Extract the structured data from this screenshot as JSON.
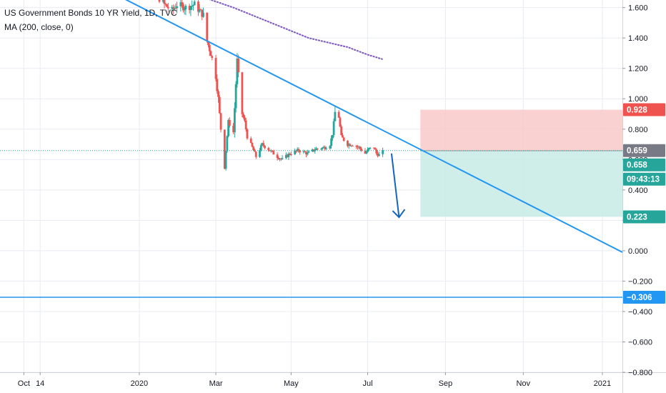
{
  "legend": {
    "symbol_line": "US Government Bonds 10 YR Yield, 1D, TVC",
    "ma_line": "MA (200, close, 0)"
  },
  "colors": {
    "up": "#26a69a",
    "down": "#ef5350",
    "ma": "#7e57c2",
    "trendline": "#2196f3",
    "arrow": "#1565c0",
    "stop_zone": "#f9c9c9",
    "target_zone": "#c7ebe5",
    "grid": "#e9ecf2",
    "axis_text": "#131722"
  },
  "chart_data": {
    "type": "candlestick",
    "title": "US Government Bonds 10 YR Yield, 1D, TVC",
    "indicator": "MA (200, close, 0)",
    "y_axis": {
      "range": [
        -0.8,
        1.65
      ],
      "ticks": [
        "1.600",
        "1.400",
        "1.200",
        "1.000",
        "0.800",
        "0.600",
        "0.400",
        "0.200",
        "0.000",
        "−0.200",
        "−0.400",
        "−0.600",
        "−0.800"
      ],
      "tick_values": [
        1.6,
        1.4,
        1.2,
        1.0,
        0.8,
        0.6,
        0.4,
        0.2,
        0.0,
        -0.2,
        -0.4,
        -0.6,
        -0.8
      ]
    },
    "x_axis": {
      "range": [
        "2019-09-12",
        "2021-01-20"
      ],
      "ticks": [
        {
          "label": "Oct",
          "date": "2019-10-01"
        },
        {
          "label": "14",
          "date": "2019-10-14"
        },
        {
          "label": "2020",
          "date": "2020-01-01"
        },
        {
          "label": "Mar",
          "date": "2020-03-02"
        },
        {
          "label": "May",
          "date": "2020-05-01"
        },
        {
          "label": "Jul",
          "date": "2020-07-01"
        },
        {
          "label": "Sep",
          "date": "2020-09-01"
        },
        {
          "label": "Nov",
          "date": "2020-11-02"
        },
        {
          "label": "2021",
          "date": "2021-01-04"
        }
      ]
    },
    "price_path": [
      [
        "2019-12-30",
        1.74
      ],
      [
        "2020-01-06",
        1.82
      ],
      [
        "2020-01-13",
        1.7
      ],
      [
        "2020-01-21",
        1.62
      ],
      [
        "2020-01-27",
        1.58
      ],
      [
        "2020-01-31",
        1.62
      ],
      [
        "2020-02-07",
        1.6
      ],
      [
        "2020-02-14",
        1.62
      ],
      [
        "2020-02-21",
        1.55
      ],
      [
        "2020-02-24",
        1.38
      ],
      [
        "2020-02-27",
        1.3
      ],
      [
        "2020-03-02",
        1.15
      ],
      [
        "2020-03-04",
        1.0
      ],
      [
        "2020-03-06",
        0.8
      ],
      [
        "2020-03-09",
        0.55
      ],
      [
        "2020-03-10",
        0.66
      ],
      [
        "2020-03-12",
        0.85
      ],
      [
        "2020-03-16",
        0.78
      ],
      [
        "2020-03-18",
        1.1
      ],
      [
        "2020-03-19",
        1.25
      ],
      [
        "2020-03-20",
        1.15
      ],
      [
        "2020-03-23",
        0.9
      ],
      [
        "2020-03-25",
        0.85
      ],
      [
        "2020-03-27",
        0.75
      ],
      [
        "2020-03-31",
        0.68
      ],
      [
        "2020-04-03",
        0.62
      ],
      [
        "2020-04-08",
        0.7
      ],
      [
        "2020-04-14",
        0.66
      ],
      [
        "2020-04-20",
        0.62
      ],
      [
        "2020-04-24",
        0.6
      ],
      [
        "2020-04-30",
        0.64
      ],
      [
        "2020-05-07",
        0.66
      ],
      [
        "2020-05-14",
        0.64
      ],
      [
        "2020-05-21",
        0.67
      ],
      [
        "2020-05-28",
        0.68
      ],
      [
        "2020-06-01",
        0.7
      ],
      [
        "2020-06-03",
        0.77
      ],
      [
        "2020-06-05",
        0.91
      ],
      [
        "2020-06-08",
        0.88
      ],
      [
        "2020-06-10",
        0.75
      ],
      [
        "2020-06-15",
        0.7
      ],
      [
        "2020-06-19",
        0.7
      ],
      [
        "2020-06-24",
        0.68
      ],
      [
        "2020-06-29",
        0.64
      ],
      [
        "2020-07-02",
        0.67
      ],
      [
        "2020-07-06",
        0.68
      ],
      [
        "2020-07-08",
        0.64
      ],
      [
        "2020-07-10",
        0.63
      ],
      [
        "2020-07-13",
        0.65
      ]
    ],
    "moving_average_200": [
      [
        "2020-02-10",
        1.7
      ],
      [
        "2020-03-16",
        1.6
      ],
      [
        "2020-04-15",
        1.5
      ],
      [
        "2020-05-15",
        1.4
      ],
      [
        "2020-06-15",
        1.34
      ],
      [
        "2020-07-01",
        1.29
      ],
      [
        "2020-07-13",
        1.26
      ]
    ],
    "trendline": [
      [
        "2019-12-10",
        1.7
      ],
      [
        "2021-01-20",
        -0.01
      ]
    ],
    "horizontal_line": {
      "value": -0.306,
      "label": "−0.306"
    },
    "position": {
      "entry": 0.658,
      "stop": 0.928,
      "target": 0.223,
      "start": "2020-08-12",
      "end": "2021-01-20"
    },
    "projection_arrow": [
      [
        "2020-07-20",
        0.64
      ],
      [
        "2020-07-26",
        0.22
      ]
    ],
    "last_price": 0.659,
    "price_labels": [
      {
        "text": "0.928",
        "value": 0.928,
        "color": "#ef5350"
      },
      {
        "text": "0.659",
        "value": 0.659,
        "color": "#787b86"
      },
      {
        "text": "0.658",
        "value": 0.658,
        "color": "#26a69a"
      },
      {
        "text": "09:43:13",
        "value": 0.56,
        "color": "#26a69a"
      },
      {
        "text": "0.223",
        "value": 0.223,
        "color": "#26a69a"
      },
      {
        "text": "−0.306",
        "value": -0.306,
        "color": "#2196f3"
      }
    ]
  }
}
